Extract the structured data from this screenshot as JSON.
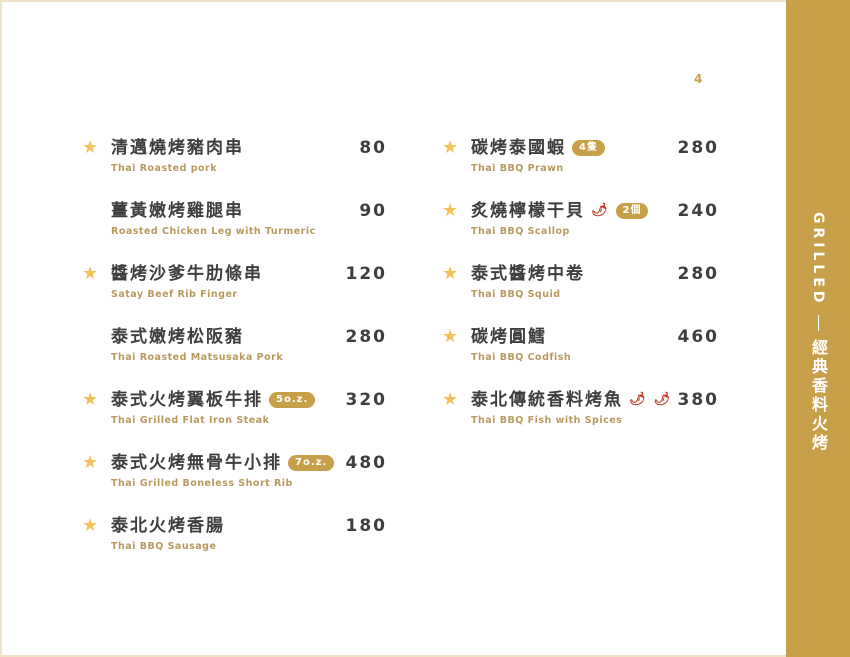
{
  "page_number": "4",
  "side": {
    "en": "GRILLED",
    "zh": "經典香料火烤"
  },
  "colors": {
    "accent": "#c9a04a",
    "star": "#f2c35a",
    "chili": "#c0392b"
  },
  "left": [
    {
      "star": true,
      "zh": "清邁燒烤豬肉串",
      "en": "Thai Roasted pork",
      "price": "80"
    },
    {
      "star": false,
      "zh": "薑黃嫩烤雞腿串",
      "en": "Roasted Chicken Leg with Turmeric",
      "price": "90"
    },
    {
      "star": true,
      "zh": "醬烤沙爹牛肋條串",
      "en": "Satay Beef Rib Finger",
      "price": "120"
    },
    {
      "star": false,
      "zh": "泰式嫩烤松阪豬",
      "en": "Thai Roasted Matsusaka Pork",
      "price": "280"
    },
    {
      "star": true,
      "zh": "泰式火烤翼板牛排",
      "badge": "5o.z.",
      "en": "Thai Grilled Flat Iron Steak",
      "price": "320"
    },
    {
      "star": true,
      "zh": "泰式火烤無骨牛小排",
      "badge": "7o.z.",
      "en": "Thai Grilled Boneless Short Rib",
      "price": "480"
    },
    {
      "star": true,
      "zh": "泰北火烤香腸",
      "en": "Thai BBQ Sausage",
      "price": "180"
    }
  ],
  "right": [
    {
      "star": true,
      "zh": "碳烤泰國蝦",
      "badge": "4隻",
      "en": "Thai BBQ Prawn",
      "price": "280"
    },
    {
      "star": true,
      "zh": "炙燒檸檬干貝",
      "chili": 1,
      "badge": "2個",
      "en": "Thai BBQ Scallop",
      "price": "240"
    },
    {
      "star": true,
      "zh": "泰式醬烤中卷",
      "en": "Thai BBQ Squid",
      "price": "280"
    },
    {
      "star": true,
      "zh": "碳烤圓鱈",
      "en": "Thai BBQ Codfish",
      "price": "460"
    },
    {
      "star": true,
      "zh": "泰北傳統香料烤魚",
      "chili": 2,
      "en": "Thai BBQ Fish with Spices",
      "price": "380"
    }
  ]
}
